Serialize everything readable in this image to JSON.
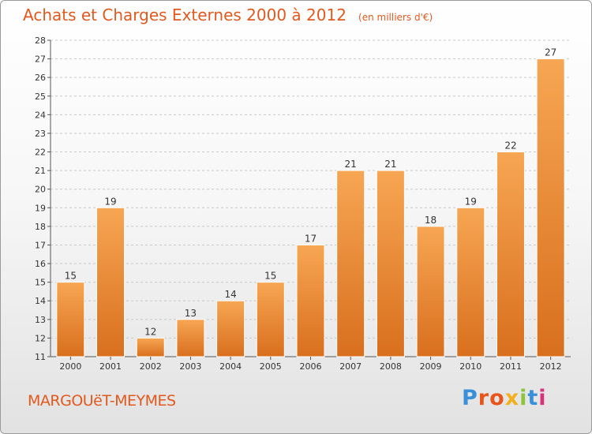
{
  "header": {
    "title": "Achats et Charges Externes 2000 à 2012",
    "unit": "(en milliers d'€)"
  },
  "footer": {
    "commune": "MARGOUëT-MEYMES",
    "logo_text": "Proxiti"
  },
  "colors": {
    "title": "#e2591f",
    "bar_light": "#f7a653",
    "bar_dark": "#d86f1e",
    "grid": "#c8c8c8"
  },
  "chart_data": {
    "type": "bar",
    "title": "Achats et Charges Externes 2000 à 2012",
    "subtitle": "(en milliers d'€)",
    "xlabel": "",
    "ylabel": "",
    "categories": [
      "2000",
      "2001",
      "2002",
      "2003",
      "2004",
      "2005",
      "2006",
      "2007",
      "2008",
      "2009",
      "2010",
      "2011",
      "2012"
    ],
    "values": [
      15,
      19,
      12,
      13,
      14,
      15,
      17,
      21,
      21,
      18,
      19,
      22,
      27
    ],
    "ylim": [
      11,
      28
    ],
    "yticks": [
      11,
      12,
      13,
      14,
      15,
      16,
      17,
      18,
      19,
      20,
      21,
      22,
      23,
      24,
      25,
      26,
      27,
      28
    ],
    "grid": "horizontal-dashed",
    "legend": "none"
  }
}
